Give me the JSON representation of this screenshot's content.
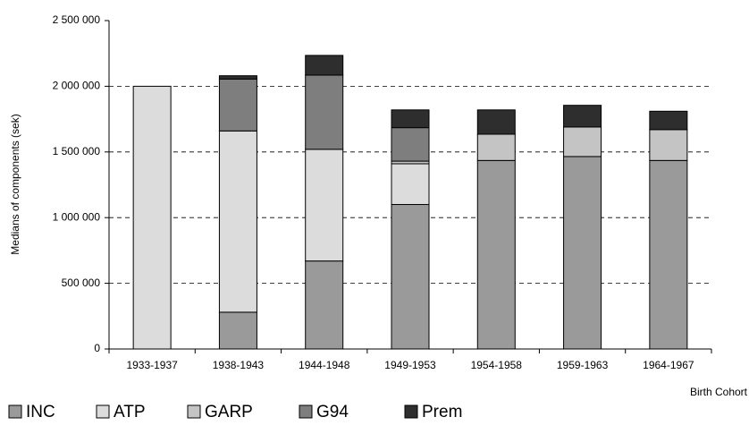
{
  "chart_data": {
    "type": "stacked_bar",
    "y_label": "Medians of components (sek)",
    "x_label": "Birth Cohort",
    "categories": [
      "1933-1937",
      "1938-1943",
      "1944-1948",
      "1949-1953",
      "1954-1958",
      "1959-1963",
      "1964-1967"
    ],
    "series": [
      {
        "name": "INC",
        "color": "#9a9a9a",
        "values": [
          null,
          280000,
          670000,
          1100000,
          1435000,
          1465000,
          1435000
        ]
      },
      {
        "name": "ATP",
        "color": "#dcdcdc",
        "values": [
          2000000,
          1380000,
          850000,
          310000,
          null,
          null,
          null
        ]
      },
      {
        "name": "GARP",
        "color": "#c4c4c4",
        "values": [
          null,
          null,
          null,
          20000,
          200000,
          225000,
          235000
        ]
      },
      {
        "name": "G94",
        "color": "#7e7e7e",
        "values": [
          null,
          395000,
          565000,
          255000,
          null,
          null,
          null
        ]
      },
      {
        "name": "Prem",
        "color": "#2e2e2e",
        "values": [
          null,
          25000,
          150000,
          135000,
          185000,
          165000,
          140000
        ]
      }
    ],
    "ylim": [
      0,
      2500000
    ],
    "yticks": [
      {
        "value": 0,
        "label": "0"
      },
      {
        "value": 500000,
        "label": "500 000"
      },
      {
        "value": 1000000,
        "label": "1 000 000"
      },
      {
        "value": 1500000,
        "label": "1 500 000"
      },
      {
        "value": 2000000,
        "label": "2 000 000"
      },
      {
        "value": 2500000,
        "label": "2 500 000"
      }
    ],
    "grid": true,
    "legend": "bottom"
  }
}
